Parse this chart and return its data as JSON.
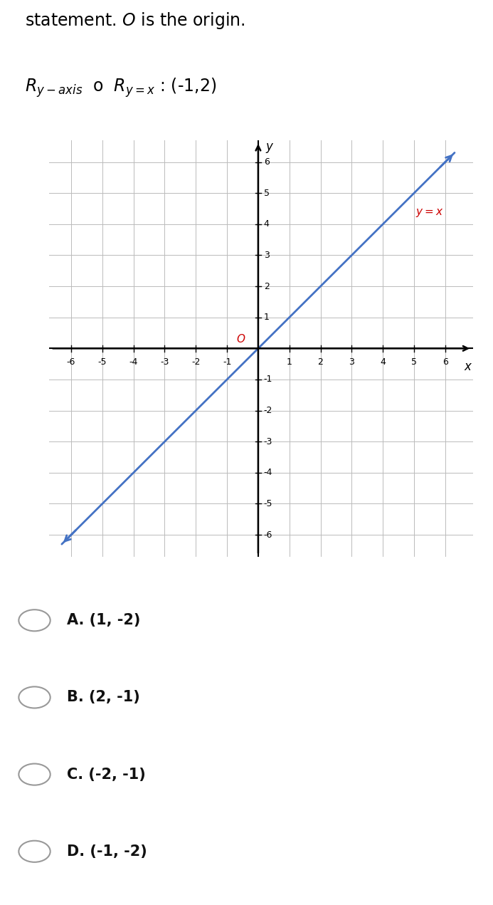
{
  "title_line1": "statement. $\\mathit{O}$ is the origin.",
  "title_line2_parts": [
    {
      "text": "$R_{y-\\mathrm{axis}}$",
      "style": "math"
    },
    {
      "text": " o ",
      "style": "normal"
    },
    {
      "text": "$R_{y=x}$",
      "style": "math"
    },
    {
      "text": " : (-1,2)",
      "style": "normal"
    }
  ],
  "line_color": "#4472C4",
  "line_x": [
    -6.3,
    6.3
  ],
  "line_y": [
    -6.3,
    6.3
  ],
  "origin_label": "$\\mathit{O}$",
  "origin_color": "#CC0000",
  "yx_label": "$y = x$",
  "yx_label_color": "#CC0000",
  "grid_color": "#BBBBBB",
  "grid_lw": 0.7,
  "xlim": [
    -6.7,
    6.9
  ],
  "ylim": [
    -6.7,
    6.7
  ],
  "xticks": [
    -6,
    -5,
    -4,
    -3,
    -2,
    -1,
    1,
    2,
    3,
    4,
    5,
    6
  ],
  "yticks": [
    -6,
    -5,
    -4,
    -3,
    -2,
    -1,
    1,
    2,
    3,
    4,
    5,
    6
  ],
  "tick_fontsize": 9,
  "axis_label_fontsize": 12,
  "choices": [
    "A. (1, -2)",
    "B. (2, -1)",
    "C. (-2, -1)",
    "D. (-1, -2)"
  ],
  "choice_fontsize": 15,
  "bg_color": "#FFFFFF",
  "header_fontsize": 17
}
